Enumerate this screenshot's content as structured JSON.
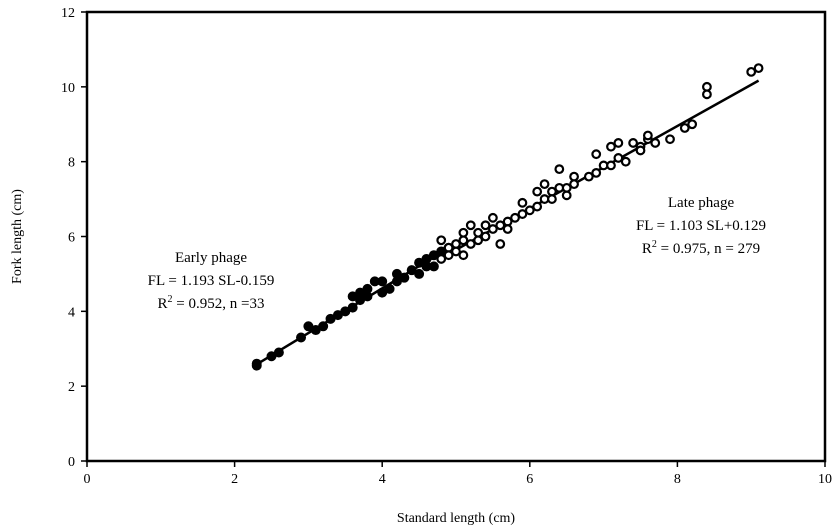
{
  "chart_data": {
    "type": "scatter",
    "xlabel": "Standard length (cm)",
    "ylabel": "Fork length (cm)",
    "xlim": [
      0,
      10
    ],
    "ylim": [
      0,
      12
    ],
    "x_ticks": [
      "0",
      "2",
      "4",
      "6",
      "8",
      "10"
    ],
    "y_ticks": [
      "0",
      "2",
      "4",
      "6",
      "8",
      "10",
      "12"
    ],
    "grid": false,
    "legend": "none",
    "annotations": [
      {
        "name": "early-phage",
        "lines": [
          {
            "text": "Early phage"
          },
          {
            "text": "FL = 1.193 SL-0.159"
          },
          {
            "pre": "R",
            "sup": "2",
            "post": " = 0.952, n =33"
          }
        ]
      },
      {
        "name": "late-phage",
        "lines": [
          {
            "text": "Late phage"
          },
          {
            "text": "FL = 1.103 SL+0.129"
          },
          {
            "pre": "R",
            "sup": "2",
            "post": " = 0.975, n = 279"
          }
        ]
      }
    ],
    "series": [
      {
        "marker": "filled-circle",
        "color": "#000000",
        "fit": {
          "slope": 1.193,
          "intercept": -0.159,
          "x_range": [
            2.3,
            4.9
          ]
        },
        "points": [
          [
            2.3,
            2.6
          ],
          [
            2.3,
            2.55
          ],
          [
            2.5,
            2.8
          ],
          [
            2.6,
            2.9
          ],
          [
            2.9,
            3.3
          ],
          [
            3.0,
            3.6
          ],
          [
            3.1,
            3.5
          ],
          [
            3.2,
            3.6
          ],
          [
            3.3,
            3.8
          ],
          [
            3.4,
            3.9
          ],
          [
            3.5,
            4.0
          ],
          [
            3.6,
            4.4
          ],
          [
            3.6,
            4.1
          ],
          [
            3.7,
            4.3
          ],
          [
            3.7,
            4.5
          ],
          [
            3.8,
            4.4
          ],
          [
            3.8,
            4.6
          ],
          [
            3.9,
            4.8
          ],
          [
            4.0,
            4.5
          ],
          [
            4.0,
            4.8
          ],
          [
            4.1,
            4.6
          ],
          [
            4.2,
            5.0
          ],
          [
            4.2,
            4.8
          ],
          [
            4.3,
            4.9
          ],
          [
            4.4,
            5.1
          ],
          [
            4.5,
            5.0
          ],
          [
            4.5,
            5.3
          ],
          [
            4.6,
            5.2
          ],
          [
            4.6,
            5.4
          ],
          [
            4.7,
            5.5
          ],
          [
            4.7,
            5.2
          ],
          [
            4.8,
            5.6
          ],
          [
            4.9,
            5.7
          ]
        ]
      },
      {
        "marker": "open-circle",
        "color": "#000000",
        "fit": {
          "slope": 1.103,
          "intercept": 0.129,
          "x_range": [
            4.8,
            9.1
          ]
        },
        "points": [
          [
            4.8,
            5.9
          ],
          [
            4.8,
            5.4
          ],
          [
            4.9,
            5.7
          ],
          [
            4.9,
            5.5
          ],
          [
            5.0,
            5.8
          ],
          [
            5.0,
            5.6
          ],
          [
            5.1,
            5.9
          ],
          [
            5.1,
            5.5
          ],
          [
            5.1,
            6.1
          ],
          [
            5.2,
            5.8
          ],
          [
            5.2,
            6.3
          ],
          [
            5.3,
            5.9
          ],
          [
            5.3,
            6.1
          ],
          [
            5.4,
            6.0
          ],
          [
            5.4,
            6.3
          ],
          [
            5.5,
            6.2
          ],
          [
            5.5,
            6.5
          ],
          [
            5.6,
            6.3
          ],
          [
            5.6,
            5.8
          ],
          [
            5.7,
            6.4
          ],
          [
            5.7,
            6.2
          ],
          [
            5.8,
            6.5
          ],
          [
            5.9,
            6.6
          ],
          [
            5.9,
            6.9
          ],
          [
            6.0,
            6.7
          ],
          [
            6.1,
            6.8
          ],
          [
            6.1,
            7.2
          ],
          [
            6.2,
            7.0
          ],
          [
            6.2,
            7.4
          ],
          [
            6.3,
            7.2
          ],
          [
            6.3,
            7.0
          ],
          [
            6.4,
            7.3
          ],
          [
            6.4,
            7.8
          ],
          [
            6.5,
            7.1
          ],
          [
            6.5,
            7.3
          ],
          [
            6.6,
            7.6
          ],
          [
            6.6,
            7.4
          ],
          [
            6.8,
            7.6
          ],
          [
            6.9,
            7.7
          ],
          [
            6.9,
            8.2
          ],
          [
            7.0,
            7.9
          ],
          [
            7.1,
            8.4
          ],
          [
            7.1,
            7.9
          ],
          [
            7.2,
            8.5
          ],
          [
            7.2,
            8.1
          ],
          [
            7.3,
            8.0
          ],
          [
            7.4,
            8.5
          ],
          [
            7.5,
            8.4
          ],
          [
            7.5,
            8.3
          ],
          [
            7.6,
            8.6
          ],
          [
            7.6,
            8.7
          ],
          [
            7.7,
            8.5
          ],
          [
            7.9,
            8.6
          ],
          [
            8.1,
            8.9
          ],
          [
            8.2,
            9.0
          ],
          [
            8.4,
            10.0
          ],
          [
            8.4,
            9.8
          ],
          [
            9.0,
            10.4
          ],
          [
            9.1,
            10.5
          ]
        ]
      }
    ]
  }
}
